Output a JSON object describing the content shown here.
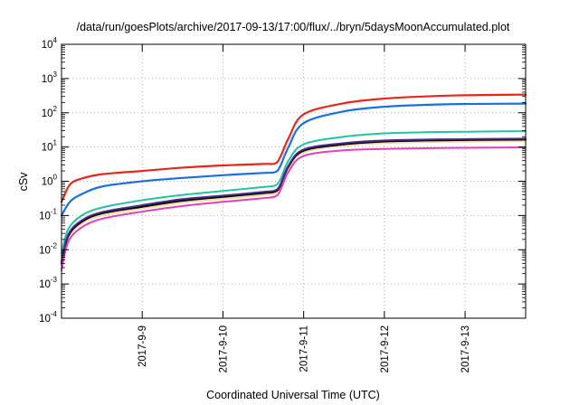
{
  "chart_data": {
    "type": "line",
    "title": "/data/run/goesPlots/archive/2017-09-13/17:00/flux/../bryn/5daysMoonAccumulated.plot",
    "xlabel": "Coordinated Universal Time (UTC)",
    "ylabel": "cSv",
    "x_scale": "date",
    "y_scale": "log",
    "grid": true,
    "legend": "none",
    "xlim": [
      "2017-09-08T00:00",
      "2017-09-13T18:00"
    ],
    "ylim": [
      0.0001,
      10000
    ],
    "x_ticks": [
      {
        "label": "2017-9-9",
        "value": "2017-09-09T00:00"
      },
      {
        "label": "2017-9-10",
        "value": "2017-09-10T00:00"
      },
      {
        "label": "2017-9-11",
        "value": "2017-09-11T00:00"
      },
      {
        "label": "2017-9-12",
        "value": "2017-09-12T00:00"
      },
      {
        "label": "2017-9-13",
        "value": "2017-09-13T00:00"
      }
    ],
    "y_ticks": [
      {
        "base": "10",
        "exp": "-4",
        "value": 0.0001
      },
      {
        "base": "10",
        "exp": "-3",
        "value": 0.001
      },
      {
        "base": "10",
        "exp": "-2",
        "value": 0.01
      },
      {
        "base": "10",
        "exp": "-1",
        "value": 0.1
      },
      {
        "base": "10",
        "exp": "0",
        "value": 1
      },
      {
        "base": "10",
        "exp": "1",
        "value": 10
      },
      {
        "base": "10",
        "exp": "2",
        "value": 100
      },
      {
        "base": "10",
        "exp": "3",
        "value": 1000
      },
      {
        "base": "10",
        "exp": "4",
        "value": 10000
      }
    ],
    "series": [
      {
        "color": "#e8261c",
        "width": 2.2,
        "x": [
          "2017-09-08T00:00",
          "2017-09-08T02:30",
          "2017-09-08T06:00",
          "2017-09-08T12:00",
          "2017-09-09T00:00",
          "2017-09-09T12:00",
          "2017-09-10T00:00",
          "2017-09-10T12:00",
          "2017-09-10T15:30",
          "2017-09-10T17:00",
          "2017-09-10T19:30",
          "2017-09-11T00:00",
          "2017-09-11T12:00",
          "2017-09-12T00:00",
          "2017-09-12T12:00",
          "2017-09-13T00:00",
          "2017-09-13T18:00"
        ],
        "y": [
          0.25,
          0.8,
          1.2,
          1.6,
          2.0,
          2.5,
          2.9,
          3.2,
          3.3,
          5,
          18,
          90,
          190,
          260,
          300,
          325,
          340
        ]
      },
      {
        "color": "#1a6fe0",
        "width": 2.2,
        "x": [
          "2017-09-08T00:00",
          "2017-09-08T02:30",
          "2017-09-08T06:00",
          "2017-09-08T12:00",
          "2017-09-09T00:00",
          "2017-09-09T12:00",
          "2017-09-10T00:00",
          "2017-09-10T12:00",
          "2017-09-10T15:30",
          "2017-09-10T17:00",
          "2017-09-10T19:30",
          "2017-09-11T00:00",
          "2017-09-11T12:00",
          "2017-09-12T00:00",
          "2017-09-12T12:00",
          "2017-09-13T00:00",
          "2017-09-13T18:00"
        ],
        "y": [
          0.1,
          0.25,
          0.42,
          0.7,
          1.0,
          1.25,
          1.5,
          1.75,
          1.85,
          2.7,
          10,
          50,
          110,
          150,
          170,
          180,
          185
        ]
      },
      {
        "color": "#22c4a0",
        "width": 2.0,
        "x": [
          "2017-09-08T00:00",
          "2017-09-08T02:00",
          "2017-09-08T06:00",
          "2017-09-08T12:00",
          "2017-09-09T00:00",
          "2017-09-09T12:00",
          "2017-09-10T00:00",
          "2017-09-10T12:00",
          "2017-09-10T15:30",
          "2017-09-10T17:00",
          "2017-09-10T19:30",
          "2017-09-11T00:00",
          "2017-09-11T12:00",
          "2017-09-12T00:00",
          "2017-09-12T12:00",
          "2017-09-13T00:00",
          "2017-09-13T18:00"
        ],
        "y": [
          0.008,
          0.04,
          0.1,
          0.17,
          0.28,
          0.4,
          0.52,
          0.68,
          0.75,
          1.1,
          4,
          12,
          20,
          25,
          27,
          28,
          29
        ]
      },
      {
        "color": "#f0d79a",
        "width": 2.0,
        "x": [
          "2017-09-08T00:00",
          "2017-09-08T02:00",
          "2017-09-08T06:00",
          "2017-09-08T12:00",
          "2017-09-09T00:00",
          "2017-09-09T12:00",
          "2017-09-10T00:00",
          "2017-09-10T12:00",
          "2017-09-10T15:30",
          "2017-09-10T17:00",
          "2017-09-10T19:30",
          "2017-09-11T00:00",
          "2017-09-11T12:00",
          "2017-09-12T00:00",
          "2017-09-12T12:00",
          "2017-09-13T00:00",
          "2017-09-13T18:00"
        ],
        "y": [
          0.0035,
          0.022,
          0.058,
          0.1,
          0.16,
          0.24,
          0.31,
          0.4,
          0.44,
          0.65,
          2.4,
          7,
          11,
          13,
          14,
          14.5,
          15
        ]
      },
      {
        "color": "#000000",
        "width": 2.0,
        "x": [
          "2017-09-08T00:00",
          "2017-09-08T02:00",
          "2017-09-08T06:00",
          "2017-09-08T12:00",
          "2017-09-09T00:00",
          "2017-09-09T12:00",
          "2017-09-10T00:00",
          "2017-09-10T12:00",
          "2017-09-10T15:30",
          "2017-09-10T17:00",
          "2017-09-10T19:30",
          "2017-09-11T00:00",
          "2017-09-11T12:00",
          "2017-09-12T00:00",
          "2017-09-12T12:00",
          "2017-09-13T00:00",
          "2017-09-13T18:00"
        ],
        "y": [
          0.004,
          0.025,
          0.065,
          0.115,
          0.18,
          0.27,
          0.35,
          0.45,
          0.5,
          0.72,
          2.7,
          7.8,
          12,
          14.5,
          15.5,
          16,
          16.5
        ]
      },
      {
        "color": "#4a2a8a",
        "width": 2.0,
        "x": [
          "2017-09-08T00:00",
          "2017-09-08T02:00",
          "2017-09-08T06:00",
          "2017-09-08T12:00",
          "2017-09-09T00:00",
          "2017-09-09T12:00",
          "2017-09-10T00:00",
          "2017-09-10T12:00",
          "2017-09-10T15:30",
          "2017-09-10T17:00",
          "2017-09-10T19:30",
          "2017-09-11T00:00",
          "2017-09-11T12:00",
          "2017-09-12T00:00",
          "2017-09-12T12:00",
          "2017-09-13T00:00",
          "2017-09-13T18:00"
        ],
        "y": [
          0.0045,
          0.028,
          0.072,
          0.125,
          0.2,
          0.3,
          0.38,
          0.49,
          0.54,
          0.78,
          2.9,
          8.5,
          13,
          15.5,
          16.5,
          17,
          17.5
        ]
      },
      {
        "color": "#e040c0",
        "width": 2.0,
        "x": [
          "2017-09-08T00:00",
          "2017-09-08T02:00",
          "2017-09-08T06:00",
          "2017-09-08T12:00",
          "2017-09-09T00:00",
          "2017-09-09T12:00",
          "2017-09-10T00:00",
          "2017-09-10T12:00",
          "2017-09-10T15:30",
          "2017-09-10T17:00",
          "2017-09-10T19:30",
          "2017-09-11T00:00",
          "2017-09-11T12:00",
          "2017-09-12T00:00",
          "2017-09-12T12:00",
          "2017-09-13T00:00",
          "2017-09-13T18:00"
        ],
        "y": [
          0.0025,
          0.017,
          0.045,
          0.08,
          0.13,
          0.19,
          0.25,
          0.32,
          0.36,
          0.52,
          1.9,
          5.5,
          8,
          8.8,
          9.2,
          9.5,
          9.8
        ]
      }
    ]
  }
}
